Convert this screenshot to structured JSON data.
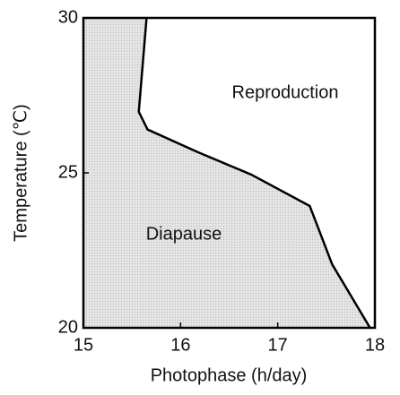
{
  "chart_data": {
    "type": "line",
    "x_label": "Photophase (h/day)",
    "y_label": "Temperature (℃)",
    "x": [
      15.65,
      15.57,
      15.66,
      16.17,
      16.73,
      17.33,
      17.56,
      17.95
    ],
    "series": [
      {
        "name": "Diapause",
        "color": "#000000",
        "fill": "#dcdcdc",
        "values": [
          30,
          26.97,
          26.4,
          25.68,
          24.94,
          23.93,
          22.05,
          20
        ]
      }
    ],
    "annotations": [
      "Reproduction",
      "Diapause"
    ],
    "xlim": [
      15,
      18
    ],
    "xticks": [
      15,
      16,
      17,
      18
    ],
    "ylim": [
      20,
      30
    ],
    "yticks": [
      20,
      25,
      30
    ]
  }
}
